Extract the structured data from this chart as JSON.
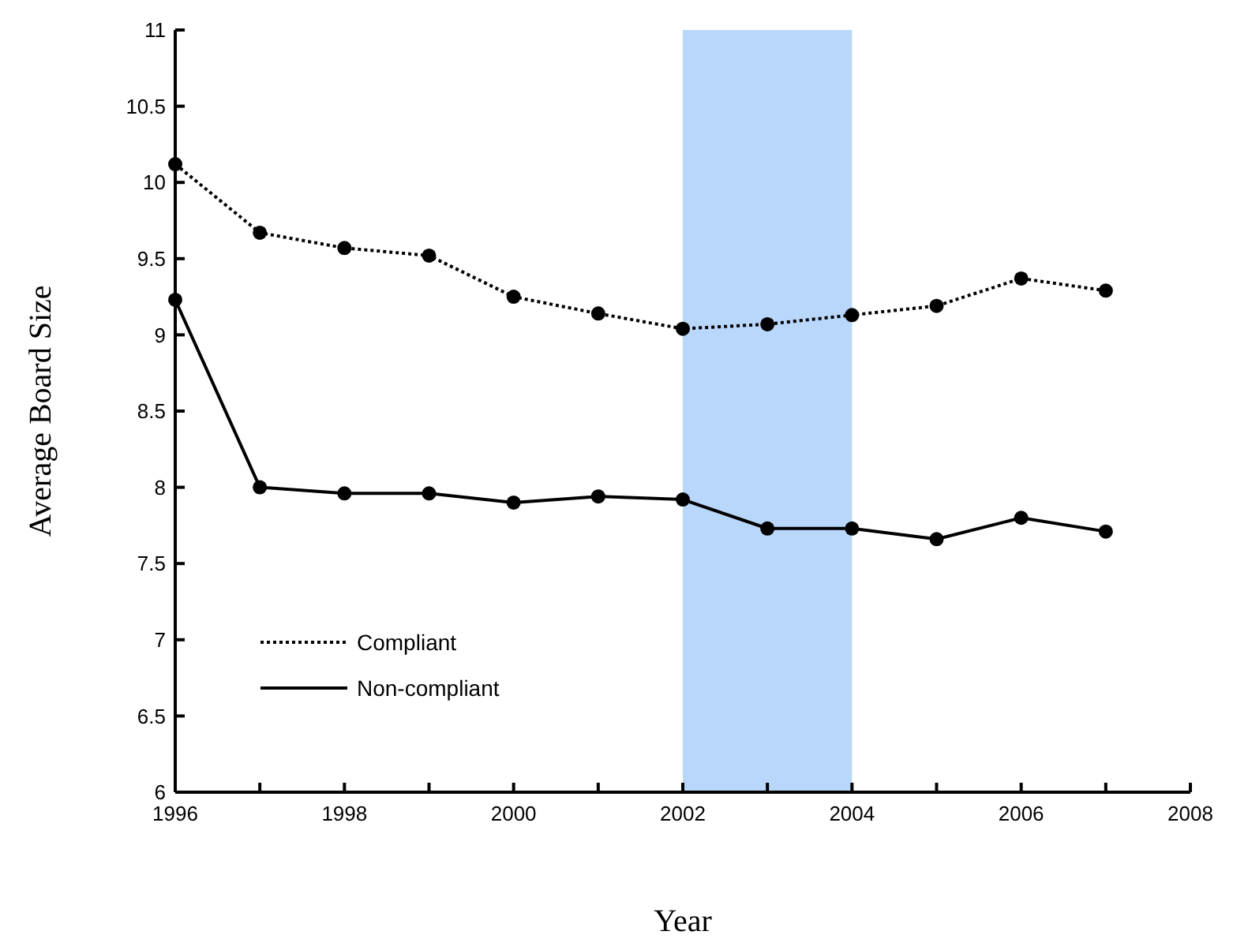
{
  "chart_data": {
    "type": "line",
    "xlabel": "Year",
    "ylabel": "Average Board Size",
    "x": [
      1996,
      1997,
      1998,
      1999,
      2000,
      2001,
      2002,
      2003,
      2004,
      2005,
      2006,
      2007
    ],
    "series": [
      {
        "name": "Compliant",
        "color": "#000000",
        "line_style": "dotted",
        "values": [
          10.12,
          9.67,
          9.57,
          9.52,
          9.25,
          9.14,
          9.04,
          9.07,
          9.13,
          9.19,
          9.37,
          9.29
        ]
      },
      {
        "name": "Non-compliant",
        "color": "#000000",
        "line_style": "solid",
        "values": [
          9.23,
          8.0,
          7.96,
          7.96,
          7.9,
          7.94,
          7.92,
          7.73,
          7.73,
          7.66,
          7.8,
          7.71
        ]
      }
    ],
    "xlim": [
      1996,
      2008
    ],
    "xticks": [
      1996,
      1998,
      2000,
      2002,
      2004,
      2006,
      2008
    ],
    "ylim": [
      6,
      11
    ],
    "yticks": [
      6,
      6.5,
      7,
      7.5,
      8,
      8.5,
      9,
      9.5,
      10,
      10.5,
      11
    ],
    "bands": [
      {
        "axis": "x",
        "from": 2002,
        "to": 2004,
        "color": "#b9d7fb"
      }
    ],
    "marker": "circle",
    "grid": false,
    "legend": "bottom left"
  }
}
